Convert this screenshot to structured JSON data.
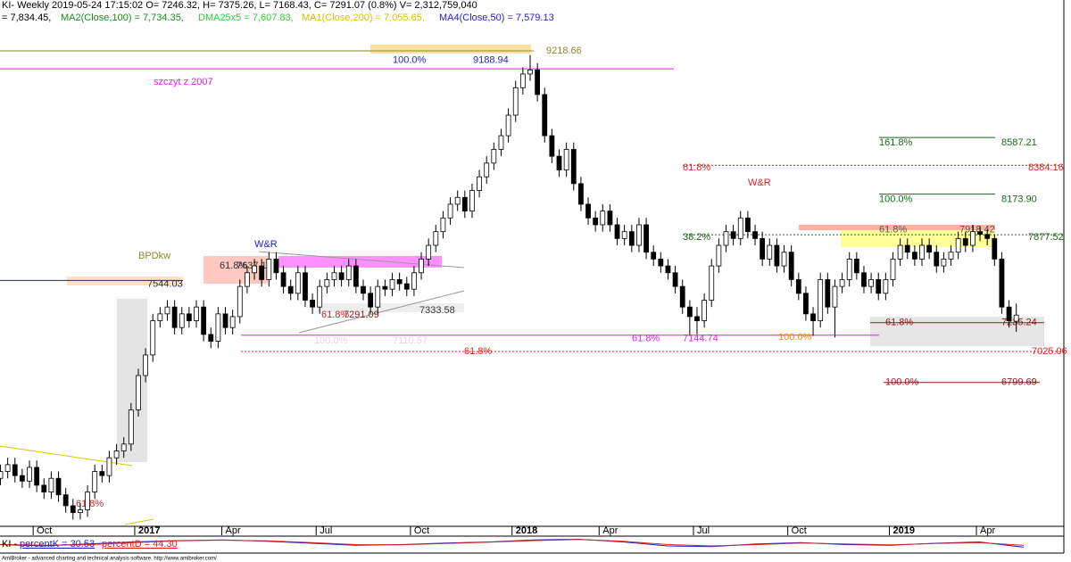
{
  "chart_data": {
    "type": "candlestick",
    "title": "KI- Weekly 2019-05-24 17:15:02 O= 7246.32, H= 7375.26, L= 7168.43, C= 7291.07 (0.8%) V= 2,312,759,040",
    "indicators": [
      {
        "text": "= 7,834.45,",
        "color": "#000000"
      },
      {
        "text": "MA2(Close,100) = 7,734.35,",
        "color": "#1a8a1a"
      },
      {
        "text": "DMA25x5 = 7,607.83,",
        "color": "#33cc33"
      },
      {
        "text": "MA1(Close,200) = 7,055.65,",
        "color": "#e0c000"
      },
      {
        "text": "MA4(Close,50) = 7,579.13",
        "color": "#2222cc"
      }
    ],
    "ylim": [
      5750,
      9590
    ],
    "up_color": "#ffffff",
    "down_color": "#000000",
    "categories": [
      null,
      null,
      null,
      null,
      null,
      "Oct",
      null,
      null,
      null,
      null,
      null,
      null,
      null,
      null,
      null,
      null,
      null,
      null,
      null,
      "2017",
      null,
      null,
      null,
      null,
      null,
      null,
      null,
      null,
      null,
      null,
      null,
      "Apr",
      null,
      null,
      null,
      null,
      null,
      null,
      null,
      null,
      null,
      null,
      null,
      null,
      "Jul",
      null,
      null,
      null,
      null,
      null,
      null,
      null,
      null,
      null,
      null,
      null,
      null,
      "Oct",
      null,
      null,
      null,
      null,
      null,
      null,
      null,
      null,
      null,
      null,
      null,
      null,
      null,
      "2018",
      null,
      null,
      null,
      null,
      null,
      null,
      null,
      null,
      null,
      null,
      null,
      "Apr",
      null,
      null,
      null,
      null,
      null,
      null,
      null,
      null,
      null,
      null,
      null,
      null,
      "Jul",
      null,
      null,
      null,
      null,
      null,
      null,
      null,
      null,
      null,
      null,
      null,
      null,
      "Oct",
      null,
      null,
      null,
      null,
      null,
      null,
      null,
      null,
      null,
      null,
      null,
      null,
      null,
      "2019",
      null,
      null,
      null,
      null,
      null,
      null,
      null,
      null,
      null,
      null,
      null,
      "Apr",
      null,
      null,
      null,
      null,
      null
    ],
    "candles": [
      [
        6100,
        6200,
        6050,
        6150
      ],
      [
        6150,
        6250,
        6100,
        6200
      ],
      [
        6200,
        6250,
        6070,
        6120
      ],
      [
        6120,
        6170,
        6030,
        6080
      ],
      [
        6080,
        6230,
        6030,
        6180
      ],
      [
        6180,
        6230,
        6000,
        6050
      ],
      [
        6050,
        6100,
        5950,
        6000
      ],
      [
        6000,
        6150,
        5950,
        6100
      ],
      [
        6100,
        6150,
        5930,
        5980
      ],
      [
        5980,
        6030,
        5850,
        5900
      ],
      [
        5900,
        5950,
        5800,
        5850
      ],
      [
        5850,
        5920,
        5800,
        5870
      ],
      [
        5870,
        6050,
        5820,
        6000
      ],
      [
        6000,
        6200,
        5950,
        6150
      ],
      [
        6150,
        6200,
        6070,
        6120
      ],
      [
        6120,
        6300,
        6070,
        6250
      ],
      [
        6250,
        6350,
        6200,
        6300
      ],
      [
        6300,
        6400,
        6250,
        6350
      ],
      [
        6350,
        6650,
        6300,
        6600
      ],
      [
        6600,
        6900,
        6550,
        6850
      ],
      [
        6850,
        7050,
        6800,
        7000
      ],
      [
        7000,
        7300,
        6950,
        7250
      ],
      [
        7250,
        7350,
        7200,
        7300
      ],
      [
        7300,
        7400,
        7250,
        7350
      ],
      [
        7350,
        7400,
        7150,
        7200
      ],
      [
        7200,
        7350,
        7150,
        7300
      ],
      [
        7300,
        7350,
        7200,
        7250
      ],
      [
        7250,
        7400,
        7200,
        7350
      ],
      [
        7350,
        7400,
        7100,
        7150
      ],
      [
        7150,
        7200,
        7050,
        7100
      ],
      [
        7100,
        7350,
        7050,
        7300
      ],
      [
        7300,
        7350,
        7150,
        7200
      ],
      [
        7200,
        7330,
        7150,
        7280
      ],
      [
        7280,
        7550,
        7230,
        7500
      ],
      [
        7500,
        7650,
        7450,
        7600
      ],
      [
        7600,
        7700,
        7550,
        7650
      ],
      [
        7650,
        7700,
        7500,
        7550
      ],
      [
        7550,
        7750,
        7500,
        7700
      ],
      [
        7700,
        7750,
        7550,
        7600
      ],
      [
        7600,
        7650,
        7450,
        7500
      ],
      [
        7500,
        7550,
        7400,
        7450
      ],
      [
        7450,
        7650,
        7400,
        7600
      ],
      [
        7600,
        7650,
        7350,
        7400
      ],
      [
        7400,
        7450,
        7300,
        7350
      ],
      [
        7350,
        7550,
        7300,
        7500
      ],
      [
        7500,
        7600,
        7450,
        7550
      ],
      [
        7550,
        7650,
        7500,
        7600
      ],
      [
        7600,
        7650,
        7500,
        7550
      ],
      [
        7550,
        7700,
        7500,
        7650
      ],
      [
        7650,
        7700,
        7450,
        7500
      ],
      [
        7500,
        7550,
        7400,
        7450
      ],
      [
        7450,
        7500,
        7300,
        7350
      ],
      [
        7350,
        7550,
        7300,
        7500
      ],
      [
        7500,
        7550,
        7430,
        7480
      ],
      [
        7480,
        7600,
        7430,
        7550
      ],
      [
        7550,
        7600,
        7470,
        7520
      ],
      [
        7520,
        7570,
        7430,
        7480
      ],
      [
        7480,
        7650,
        7430,
        7600
      ],
      [
        7600,
        7750,
        7550,
        7700
      ],
      [
        7700,
        7850,
        7650,
        7800
      ],
      [
        7800,
        7950,
        7750,
        7900
      ],
      [
        7900,
        8050,
        7850,
        8000
      ],
      [
        8000,
        8150,
        7950,
        8100
      ],
      [
        8100,
        8200,
        8050,
        8150
      ],
      [
        8150,
        8200,
        8000,
        8050
      ],
      [
        8050,
        8250,
        8000,
        8200
      ],
      [
        8200,
        8350,
        8150,
        8300
      ],
      [
        8300,
        8450,
        8250,
        8400
      ],
      [
        8400,
        8550,
        8350,
        8500
      ],
      [
        8500,
        8650,
        8450,
        8600
      ],
      [
        8600,
        8800,
        8550,
        8750
      ],
      [
        8750,
        9000,
        8700,
        8950
      ],
      [
        8950,
        9100,
        8900,
        9050
      ],
      [
        9050,
        9189,
        9000,
        9080
      ],
      [
        9080,
        9130,
        8850,
        8900
      ],
      [
        8900,
        8950,
        8550,
        8600
      ],
      [
        8600,
        8650,
        8400,
        8450
      ],
      [
        8450,
        8500,
        8300,
        8350
      ],
      [
        8350,
        8550,
        8300,
        8500
      ],
      [
        8500,
        8550,
        8200,
        8250
      ],
      [
        8250,
        8300,
        8050,
        8100
      ],
      [
        8100,
        8150,
        7950,
        8000
      ],
      [
        8000,
        8050,
        7900,
        7950
      ],
      [
        7950,
        8100,
        7900,
        8050
      ],
      [
        8050,
        8100,
        7900,
        7950
      ],
      [
        7950,
        8000,
        7800,
        7850
      ],
      [
        7850,
        7950,
        7800,
        7900
      ],
      [
        7900,
        7950,
        7750,
        7800
      ],
      [
        7800,
        8000,
        7750,
        7950
      ],
      [
        7950,
        8000,
        7700,
        7750
      ],
      [
        7750,
        7800,
        7650,
        7700
      ],
      [
        7700,
        7750,
        7600,
        7650
      ],
      [
        7650,
        7700,
        7550,
        7600
      ],
      [
        7600,
        7650,
        7450,
        7500
      ],
      [
        7500,
        7550,
        7300,
        7350
      ],
      [
        7350,
        7400,
        7145,
        7280
      ],
      [
        7280,
        7350,
        7150,
        7250
      ],
      [
        7250,
        7450,
        7200,
        7400
      ],
      [
        7400,
        7700,
        7350,
        7650
      ],
      [
        7650,
        7850,
        7600,
        7800
      ],
      [
        7800,
        7950,
        7750,
        7900
      ],
      [
        7900,
        7950,
        7800,
        7850
      ],
      [
        7850,
        8050,
        7800,
        8000
      ],
      [
        8000,
        8050,
        7850,
        7900
      ],
      [
        7900,
        7950,
        7800,
        7850
      ],
      [
        7850,
        7900,
        7650,
        7700
      ],
      [
        7700,
        7850,
        7650,
        7800
      ],
      [
        7800,
        7850,
        7600,
        7650
      ],
      [
        7650,
        7800,
        7600,
        7750
      ],
      [
        7750,
        7800,
        7500,
        7550
      ],
      [
        7550,
        7600,
        7400,
        7450
      ],
      [
        7450,
        7500,
        7250,
        7300
      ],
      [
        7300,
        7350,
        7140,
        7250
      ],
      [
        7250,
        7600,
        7200,
        7550
      ],
      [
        7550,
        7600,
        7300,
        7350
      ],
      [
        7350,
        7550,
        7128,
        7500
      ],
      [
        7500,
        7600,
        7450,
        7550
      ],
      [
        7550,
        7750,
        7500,
        7700
      ],
      [
        7700,
        7750,
        7550,
        7600
      ],
      [
        7600,
        7650,
        7450,
        7500
      ],
      [
        7500,
        7600,
        7450,
        7550
      ],
      [
        7550,
        7600,
        7400,
        7450
      ],
      [
        7450,
        7600,
        7400,
        7550
      ],
      [
        7550,
        7750,
        7500,
        7700
      ],
      [
        7700,
        7850,
        7650,
        7800
      ],
      [
        7800,
        7850,
        7700,
        7750
      ],
      [
        7750,
        7800,
        7650,
        7700
      ],
      [
        7700,
        7850,
        7650,
        7800
      ],
      [
        7800,
        7850,
        7700,
        7750
      ],
      [
        7750,
        7800,
        7600,
        7650
      ],
      [
        7650,
        7750,
        7600,
        7700
      ],
      [
        7700,
        7800,
        7650,
        7750
      ],
      [
        7750,
        7900,
        7700,
        7850
      ],
      [
        7850,
        7900,
        7750,
        7800
      ],
      [
        7800,
        7950,
        7750,
        7900
      ],
      [
        7900,
        7940,
        7830,
        7880
      ],
      [
        7880,
        7918,
        7800,
        7850
      ],
      [
        7850,
        7880,
        7650,
        7700
      ],
      [
        7700,
        7750,
        7300,
        7350
      ],
      [
        7350,
        7400,
        7200,
        7250
      ],
      [
        7246.32,
        7375.26,
        7168.43,
        7291.07
      ]
    ],
    "levels": [
      {
        "value": 9218.66,
        "label": "9218.66",
        "color": "#8a8a2a",
        "style": "solid"
      },
      {
        "value": 9188.94,
        "pct": "100.0%",
        "label": "9188.94",
        "color": "#2222cc",
        "style": "none"
      },
      {
        "value": 9088,
        "label": "szczyt z 2007",
        "color": "#e020e0",
        "style": "solid"
      },
      {
        "value": 8587.21,
        "pct": "161.8%",
        "label": "8587.21",
        "color": "#1a6a1a",
        "style": "solid"
      },
      {
        "value": 8384.16,
        "pct": "61.8%",
        "label": "8384.16",
        "color": "#dd2222",
        "style": "dotted"
      },
      {
        "value": 8173.9,
        "pct": "100.0%",
        "label": "8173.90",
        "color": "#1a6a1a",
        "style": "solid"
      },
      {
        "value": 7918.42,
        "pct": "61.8%",
        "label": "7918.42",
        "color": "#555555",
        "style": "none"
      },
      {
        "value": 7877.52,
        "pct": "38.2%",
        "label": "7877.52",
        "color": "#1a6a1a",
        "style": "dotted"
      },
      {
        "value": 7544.03,
        "label": "7544.03",
        "color": "#223355",
        "style": "solid"
      },
      {
        "value": 7144.74,
        "pct": "61.8%",
        "label": "7144.74",
        "color": "#e020e0",
        "style": "solid"
      },
      {
        "value": 7235.24,
        "pct": "61.8%",
        "label": "7235.24",
        "color": "#8b1a1a",
        "style": "solid"
      },
      {
        "value": 7025.06,
        "pct": "61.8%",
        "label": "7025.06",
        "color": "#dd2222",
        "style": "dotted"
      },
      {
        "value": 6799.69,
        "pct": "100.0%",
        "label": "6799.69",
        "color": "#8b1a1a",
        "style": "solid"
      }
    ],
    "annotations": [
      {
        "text": "BPDkw",
        "color": "#8a8a2a"
      },
      {
        "text": "W&R",
        "color": "#2222cc"
      },
      {
        "text": "W&R",
        "color": "#dd2222"
      },
      {
        "text": "61.8%",
        "color": "#333333"
      },
      {
        "text": "7637.11",
        "color": "#333333"
      },
      {
        "text": "7333.58",
        "color": "#333333"
      },
      {
        "text": "61.8%",
        "color": "#dd2222"
      },
      {
        "text": "7291.09",
        "color": "#8b1a1a"
      },
      {
        "text": "100.0%",
        "color": "#dddddd"
      },
      {
        "text": "7110.57",
        "color": "#dddddd"
      },
      {
        "text": "100.0%",
        "color": "#ff8800"
      },
      {
        "text": "61.8%",
        "color": "#dd2222"
      }
    ],
    "oscillator": {
      "title": "KI -",
      "ylim": [
        0,
        100
      ],
      "series": [
        {
          "name": "percentK = 30.53",
          "color": "#2222cc",
          "values": [
            50,
            40,
            55,
            70,
            80,
            85,
            75,
            60,
            45,
            50,
            62,
            70,
            85,
            90,
            70,
            40,
            35,
            55,
            65,
            50,
            45,
            60,
            70,
            30.53
          ]
        },
        {
          "name": "percentD = 44.30",
          "color": "#dd2222",
          "values": [
            52,
            45,
            50,
            65,
            78,
            83,
            78,
            65,
            50,
            48,
            58,
            68,
            80,
            88,
            75,
            50,
            40,
            50,
            62,
            55,
            48,
            58,
            65,
            44.3
          ]
        }
      ]
    },
    "footer": "AmiBroker - advanced charting and technical analysis software. http://www.amibroker.com/"
  }
}
